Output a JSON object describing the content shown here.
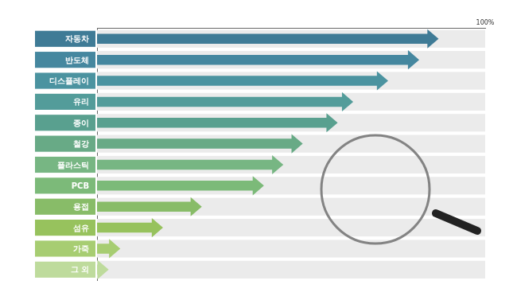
{
  "chart_data": {
    "type": "bar",
    "orientation": "horizontal",
    "categories": [
      "자동차",
      "반도체",
      "디스플레이",
      "유리",
      "종이",
      "철강",
      "플라스틱",
      "PCB",
      "용접",
      "섬유",
      "가죽",
      "그 외"
    ],
    "values": [
      88,
      83,
      75,
      66,
      62,
      53,
      48,
      43,
      27,
      17,
      6,
      3
    ],
    "colors": [
      "#3f7b96",
      "#45879f",
      "#4b93a0",
      "#539c9a",
      "#59a08f",
      "#68aa86",
      "#77b683",
      "#7cba79",
      "#88bc68",
      "#97c25d",
      "#a7cd72",
      "#bedb9c"
    ],
    "xlim": [
      0,
      100
    ],
    "xticks": [
      {
        "value": 100,
        "label": "100%"
      }
    ],
    "grid": false
  }
}
